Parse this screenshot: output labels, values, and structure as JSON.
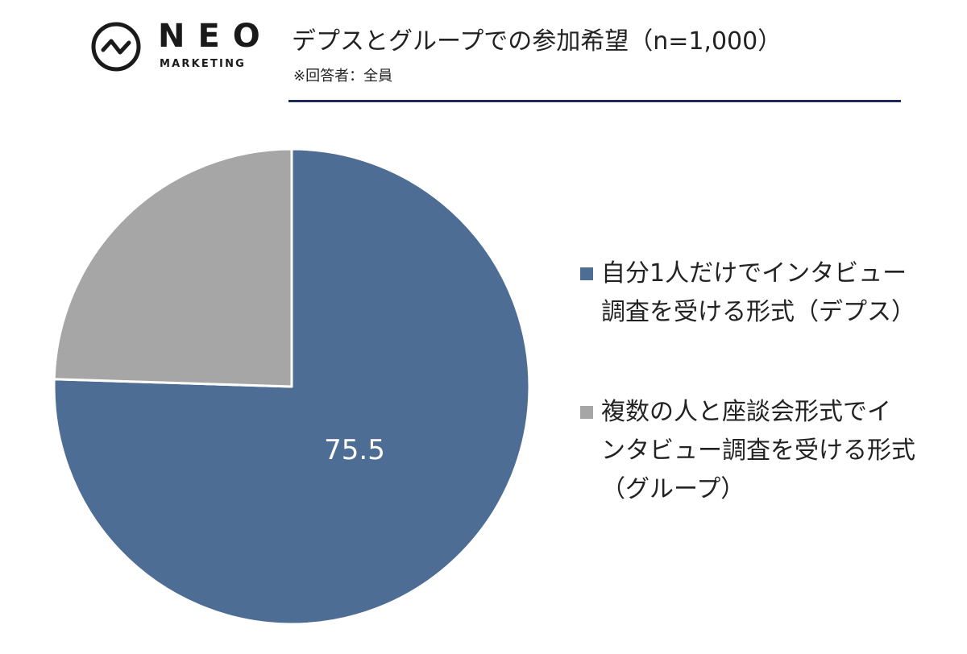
{
  "colors": {
    "primary": "#4e6d95",
    "secondary": "#a6a6a6",
    "rule": "#1f2a5c",
    "logo": "#1a1a1a"
  },
  "logo": {
    "name": "NEO",
    "sub": "MARKETING",
    "icon": "pulse-circle-icon"
  },
  "header": {
    "title": "デプスとグループでの参加希望（n=1,000）",
    "note": "※回答者：全員"
  },
  "chart_data": {
    "type": "pie",
    "title": "デプスとグループでの参加希望（n=1,000）",
    "start_angle_deg": 0,
    "direction": "clockwise",
    "legend_position": "right",
    "slices": [
      {
        "label": "自分1人だけでインタビュー調査を受ける形式（デプス）",
        "label_lines": [
          "自分1人だけでインタビュー",
          "調査を受ける形式（デプス）"
        ],
        "value": 75.5,
        "data_label": "75.5",
        "color": "#4e6d95"
      },
      {
        "label": "複数の人と座談会形式でインタビュー調査を受ける形式（グループ）",
        "label_lines": [
          "複数の人と座談会形式でイ",
          "ンタビュー調査を受ける形式",
          "（グループ）"
        ],
        "value": 24.5,
        "data_label": "",
        "color": "#a6a6a6"
      }
    ]
  }
}
